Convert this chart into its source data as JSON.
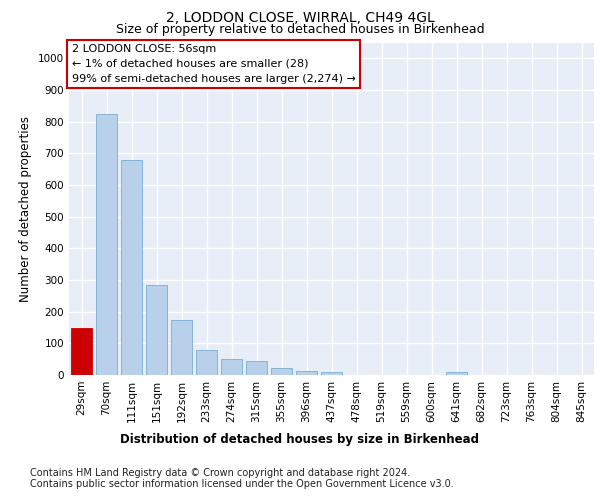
{
  "title_line1": "2, LODDON CLOSE, WIRRAL, CH49 4GL",
  "title_line2": "Size of property relative to detached houses in Birkenhead",
  "xlabel": "Distribution of detached houses by size in Birkenhead",
  "ylabel": "Number of detached properties",
  "categories": [
    "29sqm",
    "70sqm",
    "111sqm",
    "151sqm",
    "192sqm",
    "233sqm",
    "274sqm",
    "315sqm",
    "355sqm",
    "396sqm",
    "437sqm",
    "478sqm",
    "519sqm",
    "559sqm",
    "600sqm",
    "641sqm",
    "682sqm",
    "723sqm",
    "763sqm",
    "804sqm",
    "845sqm"
  ],
  "values": [
    150,
    825,
    680,
    285,
    175,
    78,
    52,
    43,
    22,
    12,
    10,
    0,
    0,
    0,
    0,
    10,
    0,
    0,
    0,
    0,
    0
  ],
  "bar_color": "#b8d0ea",
  "bar_edge_color": "#7aadd4",
  "highlight_bar_index": 0,
  "highlight_color": "#cc0000",
  "highlight_edge_color": "#cc0000",
  "annotation_text": "2 LODDON CLOSE: 56sqm\n← 1% of detached houses are smaller (28)\n99% of semi-detached houses are larger (2,274) →",
  "annotation_box_color": "white",
  "annotation_box_edge_color": "#cc0000",
  "ylim": [
    0,
    1050
  ],
  "yticks": [
    0,
    100,
    200,
    300,
    400,
    500,
    600,
    700,
    800,
    900,
    1000
  ],
  "footnote_line1": "Contains HM Land Registry data © Crown copyright and database right 2024.",
  "footnote_line2": "Contains public sector information licensed under the Open Government Licence v3.0.",
  "bg_color": "#e8eef8",
  "grid_color": "white",
  "title_fontsize": 10,
  "subtitle_fontsize": 9,
  "axis_label_fontsize": 8.5,
  "tick_fontsize": 7.5,
  "annotation_fontsize": 8,
  "footnote_fontsize": 7
}
